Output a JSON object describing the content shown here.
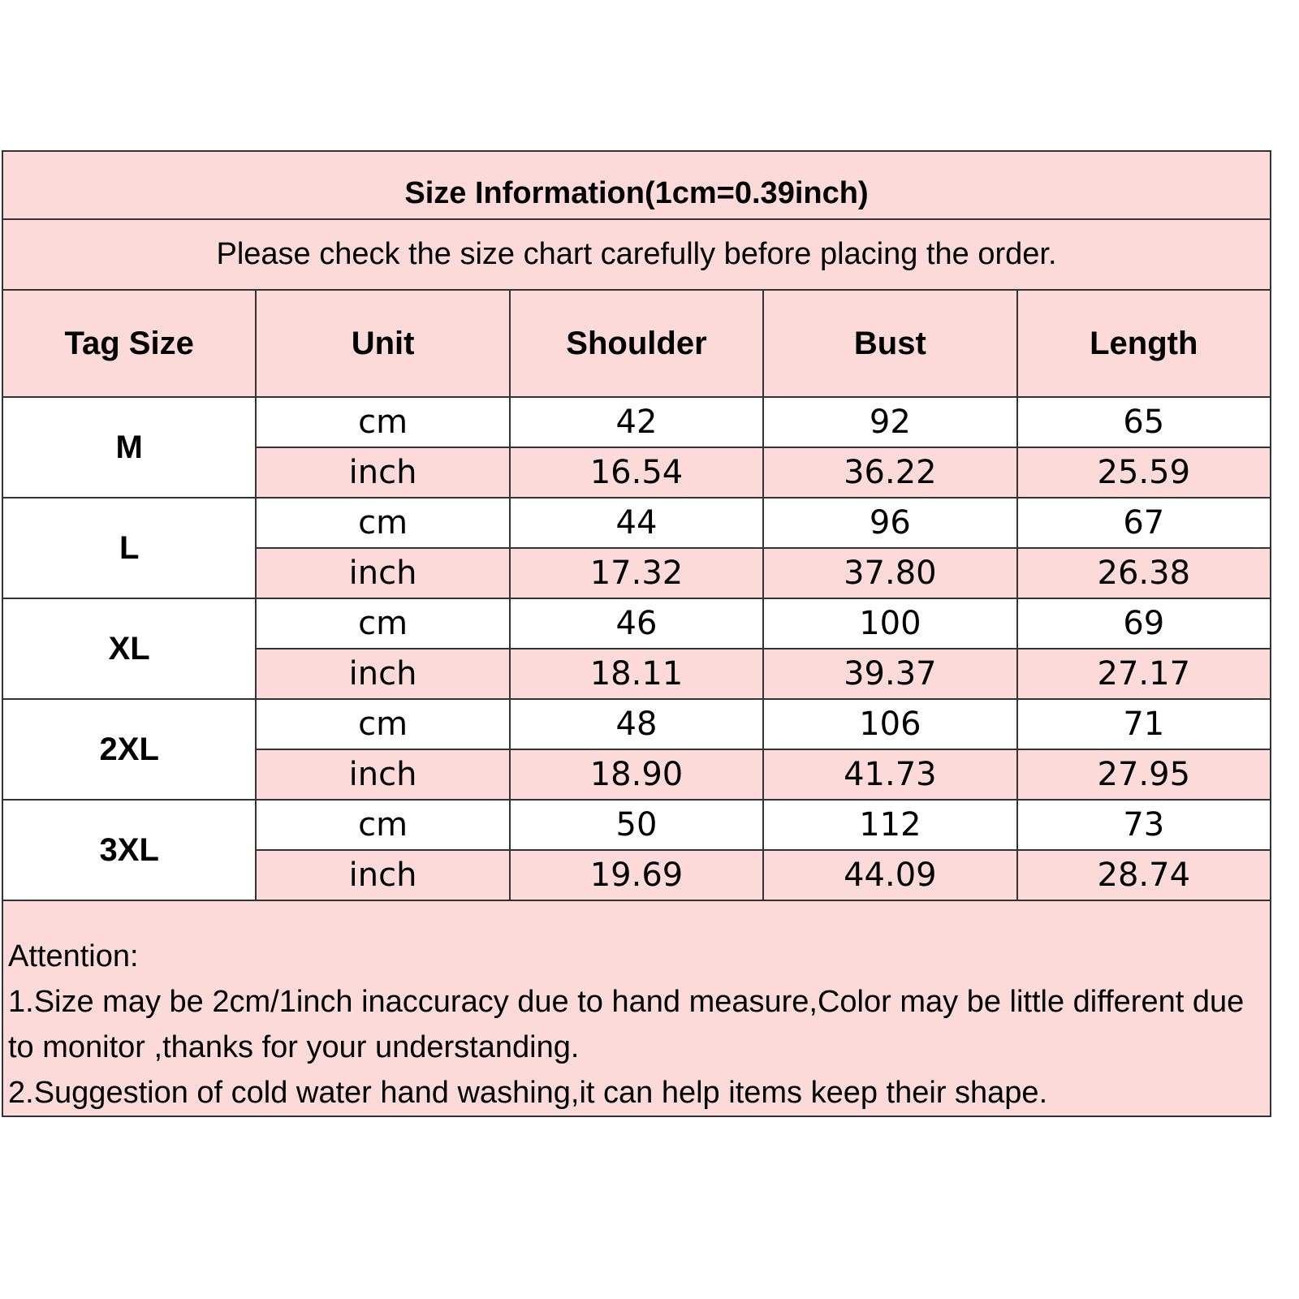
{
  "title": "Size Information(1cm=0.39inch)",
  "subtitle": "Please check the size chart carefully before placing the order.",
  "headers": [
    "Tag Size",
    "Unit",
    "Shoulder",
    "Bust",
    "Length"
  ],
  "rows": [
    {
      "size": "M",
      "cm": {
        "unit": "cm",
        "values": [
          "42",
          "92",
          "65"
        ]
      },
      "inch": {
        "unit": "inch",
        "values": [
          "16.54",
          "36.22",
          "25.59"
        ]
      }
    },
    {
      "size": "L",
      "cm": {
        "unit": "cm",
        "values": [
          "44",
          "96",
          "67"
        ]
      },
      "inch": {
        "unit": "inch",
        "values": [
          "17.32",
          "37.80",
          "26.38"
        ]
      }
    },
    {
      "size": "XL",
      "cm": {
        "unit": "cm",
        "values": [
          "46",
          "100",
          "69"
        ]
      },
      "inch": {
        "unit": "inch",
        "values": [
          "18.11",
          "39.37",
          "27.17"
        ]
      }
    },
    {
      "size": "2XL",
      "cm": {
        "unit": "cm",
        "values": [
          "48",
          "106",
          "71"
        ]
      },
      "inch": {
        "unit": "inch",
        "values": [
          "18.90",
          "41.73",
          "27.95"
        ]
      }
    },
    {
      "size": "3XL",
      "cm": {
        "unit": "cm",
        "values": [
          "50",
          "112",
          "73"
        ]
      },
      "inch": {
        "unit": "inch",
        "values": [
          "19.69",
          "44.09",
          "28.74"
        ]
      }
    }
  ],
  "attention": {
    "heading": "Attention:",
    "line1": "1.Size may be 2cm/1inch inaccuracy due to hand measure,Color may be little different due to monitor ,thanks for your understanding.",
    "line2": "2.Suggestion of cold water hand washing,it can help items keep their shape."
  },
  "colors": {
    "pink": "#fcdada",
    "border": "#333333"
  }
}
